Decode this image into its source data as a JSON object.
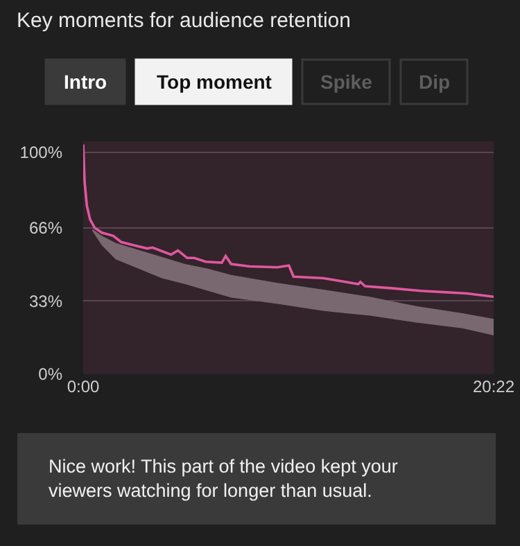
{
  "chart_data": {
    "type": "line",
    "title": "Key moments for audience retention",
    "x": [
      0,
      0.07,
      0.18,
      0.34,
      0.57,
      0.92,
      1.49,
      1.88,
      2.52,
      3.17,
      3.44,
      4.36,
      4.7,
      5.16,
      5.51,
      6.08,
      6.88,
      7.07,
      7.34,
      8.26,
      9.63,
      10.21,
      10.44,
      11.93,
      12.85,
      13.65,
      13.76,
      13.99,
      15.37,
      16.75,
      17.89,
      19.04,
      20.37
    ],
    "series": [
      {
        "type": "area",
        "color": "#7a6870",
        "x": [
          0.46,
          0.92,
          1.61,
          2.75,
          3.9,
          5.05,
          6.19,
          7.34,
          9.63,
          11.93,
          14.22,
          16.52,
          18.81,
          20.37
        ],
        "values": [
          null,
          null,
          null,
          null,
          null,
          null,
          null,
          null,
          null,
          null,
          null,
          null,
          null,
          null
        ],
        "lower": [
          64.5,
          58.1,
          51.8,
          47.6,
          43.3,
          40.6,
          37.6,
          34.5,
          31.7,
          28.5,
          26.4,
          23.3,
          20.7,
          17.5
        ],
        "upper": [
          65.5,
          62.4,
          59.2,
          56.0,
          52.9,
          49.7,
          47.6,
          44.8,
          41.2,
          38.1,
          34.9,
          30.7,
          27.5,
          24.9
        ]
      },
      {
        "color": "#e0589e",
        "values": [
          103.6,
          86.7,
          76.1,
          69.8,
          66.0,
          63.8,
          62.4,
          59.6,
          58.1,
          56.7,
          57.1,
          53.9,
          55.8,
          52.4,
          52.4,
          50.7,
          50.3,
          53.3,
          49.7,
          48.6,
          48.2,
          49.0,
          44.0,
          43.3,
          41.9,
          40.6,
          41.6,
          39.7,
          38.7,
          37.6,
          37.0,
          36.4,
          34.9
        ]
      }
    ],
    "xlim": [
      0,
      20.37
    ],
    "xticks": [
      {
        "value": 0,
        "label": "0:00"
      },
      {
        "value": 20.37,
        "label": "20:22"
      }
    ],
    "ylim": [
      0,
      105
    ],
    "yticks": [
      {
        "value": 0,
        "label": "0%"
      },
      {
        "value": 33,
        "label": "33%"
      },
      {
        "value": 66,
        "label": "66%"
      },
      {
        "value": 100,
        "label": "100%"
      }
    ],
    "grid": "y",
    "annotations": [
      "Intro",
      "Top moment",
      "Spike",
      "Dip",
      "Nice work! This part of the video kept your viewers watching for longer than usual."
    ]
  }
}
